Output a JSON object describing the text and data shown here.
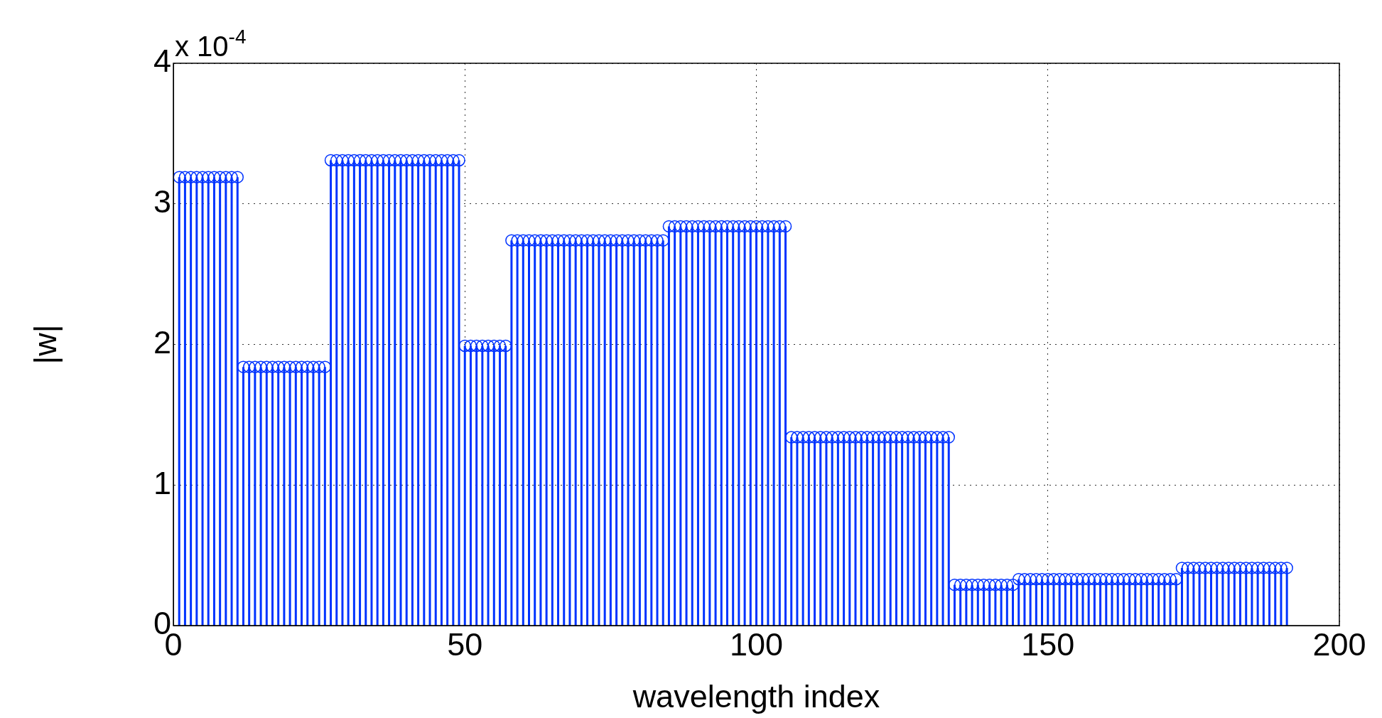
{
  "chart_data": {
    "type": "lollipop",
    "xlabel": "wavelength index",
    "ylabel": "|w|",
    "annotations": [
      "x 10$^{-4}$"
    ],
    "xlim": [
      0,
      200
    ],
    "xticks": [
      0,
      50,
      100,
      150,
      200
    ],
    "ylim": [
      0,
      4
    ],
    "yticks": [
      0,
      1,
      2,
      3,
      4
    ],
    "grid": true,
    "marker": "circle",
    "legend": false,
    "x": [
      1,
      2,
      3,
      4,
      5,
      6,
      7,
      8,
      9,
      10,
      11,
      12,
      13,
      14,
      15,
      16,
      17,
      18,
      19,
      20,
      21,
      22,
      23,
      24,
      25,
      26,
      27,
      28,
      29,
      30,
      31,
      32,
      33,
      34,
      35,
      36,
      37,
      38,
      39,
      40,
      41,
      42,
      43,
      44,
      45,
      46,
      47,
      48,
      49,
      50,
      51,
      52,
      53,
      54,
      55,
      56,
      57,
      58,
      59,
      60,
      61,
      62,
      63,
      64,
      65,
      66,
      67,
      68,
      69,
      70,
      71,
      72,
      73,
      74,
      75,
      76,
      77,
      78,
      79,
      80,
      81,
      82,
      83,
      84,
      85,
      86,
      87,
      88,
      89,
      90,
      91,
      92,
      93,
      94,
      95,
      96,
      97,
      98,
      99,
      100,
      101,
      102,
      103,
      104,
      105,
      106,
      107,
      108,
      109,
      110,
      111,
      112,
      113,
      114,
      115,
      116,
      117,
      118,
      119,
      120,
      121,
      122,
      123,
      124,
      125,
      126,
      127,
      128,
      129,
      130,
      131,
      132,
      133,
      134,
      135,
      136,
      137,
      138,
      139,
      140,
      141,
      142,
      143,
      144,
      145,
      146,
      147,
      148,
      149,
      150,
      151,
      152,
      153,
      154,
      155,
      156,
      157,
      158,
      159,
      160,
      161,
      162,
      163,
      164,
      165,
      166,
      167,
      168,
      169,
      170,
      171,
      172,
      173,
      174,
      175,
      176,
      177,
      178,
      179,
      180,
      181,
      182,
      183,
      184,
      185,
      186,
      187,
      188,
      189,
      190,
      191
    ],
    "series": [
      {
        "color": "#0033ff",
        "values": [
          3.19,
          3.19,
          3.19,
          3.19,
          3.19,
          3.19,
          3.19,
          3.19,
          3.19,
          3.19,
          3.19,
          1.84,
          1.84,
          1.84,
          1.84,
          1.84,
          1.84,
          1.84,
          1.84,
          1.84,
          1.84,
          1.84,
          1.84,
          1.84,
          1.84,
          1.84,
          3.31,
          3.31,
          3.31,
          3.31,
          3.31,
          3.31,
          3.31,
          3.31,
          3.31,
          3.31,
          3.31,
          3.31,
          3.31,
          3.31,
          3.31,
          3.31,
          3.31,
          3.31,
          3.31,
          3.31,
          3.31,
          3.31,
          3.31,
          1.99,
          1.99,
          1.99,
          1.99,
          1.99,
          1.99,
          1.99,
          1.99,
          2.74,
          2.74,
          2.74,
          2.74,
          2.74,
          2.74,
          2.74,
          2.74,
          2.74,
          2.74,
          2.74,
          2.74,
          2.74,
          2.74,
          2.74,
          2.74,
          2.74,
          2.74,
          2.74,
          2.74,
          2.74,
          2.74,
          2.74,
          2.74,
          2.74,
          2.74,
          2.74,
          2.84,
          2.84,
          2.84,
          2.84,
          2.84,
          2.84,
          2.84,
          2.84,
          2.84,
          2.84,
          2.84,
          2.84,
          2.84,
          2.84,
          2.84,
          2.84,
          2.84,
          2.84,
          2.84,
          2.84,
          2.84,
          1.34,
          1.34,
          1.34,
          1.34,
          1.34,
          1.34,
          1.34,
          1.34,
          1.34,
          1.34,
          1.34,
          1.34,
          1.34,
          1.34,
          1.34,
          1.34,
          1.34,
          1.34,
          1.34,
          1.34,
          1.34,
          1.34,
          1.34,
          1.34,
          1.34,
          1.34,
          1.34,
          1.34,
          0.29,
          0.29,
          0.29,
          0.29,
          0.29,
          0.29,
          0.29,
          0.29,
          0.29,
          0.29,
          0.29,
          0.33,
          0.33,
          0.33,
          0.33,
          0.33,
          0.33,
          0.33,
          0.33,
          0.33,
          0.33,
          0.33,
          0.33,
          0.33,
          0.33,
          0.33,
          0.33,
          0.33,
          0.33,
          0.33,
          0.33,
          0.33,
          0.33,
          0.33,
          0.33,
          0.33,
          0.33,
          0.33,
          0.33,
          0.41,
          0.41,
          0.41,
          0.41,
          0.41,
          0.41,
          0.41,
          0.41,
          0.41,
          0.41,
          0.41,
          0.41,
          0.41,
          0.41,
          0.41,
          0.41,
          0.41,
          0.41,
          0.41
        ]
      }
    ]
  }
}
